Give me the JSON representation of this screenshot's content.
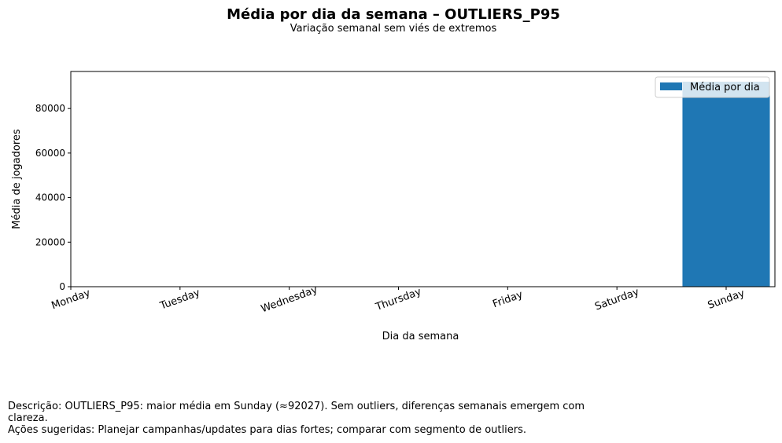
{
  "chart_data": {
    "type": "bar",
    "title": "Média por dia da semana – OUTLIERS_P95",
    "subtitle": "Variação semanal sem viés de extremos",
    "xlabel": "Dia da semana",
    "ylabel": "Média de jogadores",
    "categories": [
      "Monday",
      "Tuesday",
      "Wednesday",
      "Thursday",
      "Friday",
      "Saturday",
      "Sunday"
    ],
    "series": [
      {
        "name": "Média por dia",
        "values": [
          0,
          0,
          0,
          0,
          0,
          0,
          92027
        ],
        "color": "#1f77b4"
      }
    ],
    "ylim": [
      0,
      96628
    ],
    "yticks": [
      0,
      20000,
      40000,
      60000,
      80000
    ],
    "grid": false,
    "legend": "top-right"
  },
  "description": {
    "line1": "Descrição: OUTLIERS_P95: maior média em Sunday (≈92027). Sem outliers, diferenças semanais emergem com",
    "line2": "clareza.",
    "line3": "Ações sugeridas: Planejar campanhas/updates para dias fortes; comparar com segmento de outliers."
  }
}
